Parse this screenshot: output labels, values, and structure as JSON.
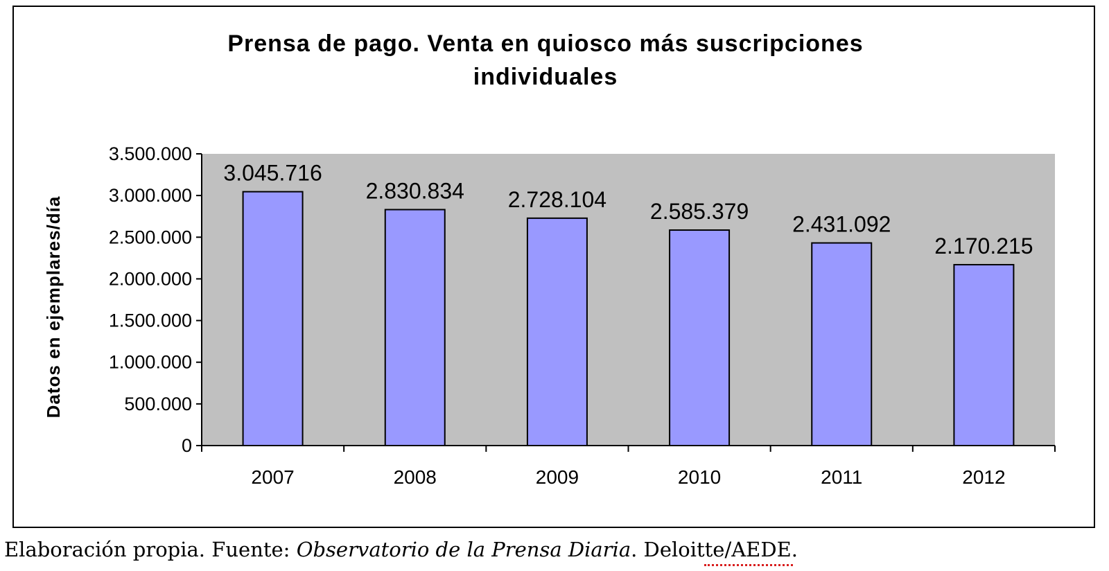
{
  "chart_data": {
    "type": "bar",
    "title_line1": "Prensa de pago. Venta en quiosco más suscripciones",
    "title_line2": "individuales",
    "xlabel": "",
    "ylabel": "Datos en ejemplares/día",
    "categories": [
      "2007",
      "2008",
      "2009",
      "2010",
      "2011",
      "2012"
    ],
    "series": [
      {
        "values": [
          3045716,
          2830834,
          2728104,
          2585379,
          2431092,
          2170215
        ],
        "data_labels": [
          "3.045.716",
          "2.830.834",
          "2.728.104",
          "2.585.379",
          "2.431.092",
          "2.170.215"
        ]
      }
    ],
    "ylim": [
      0,
      3500000
    ],
    "yticks": [
      0,
      500000,
      1000000,
      1500000,
      2000000,
      2500000,
      3000000,
      3500000
    ],
    "ytick_labels": [
      "0",
      "500.000",
      "1.000.000",
      "1.500.000",
      "2.000.000",
      "2.500.000",
      "3.000.000",
      "3.500.000"
    ],
    "grid": false,
    "legend": "none",
    "colors": {
      "bar_fill": "#9999ff",
      "plot_background": "#c0c0c0",
      "bar_outline": "#000000"
    }
  },
  "footer": {
    "source_prefix": "Elaboración propia. Fuente: ",
    "source_title": "Observatorio de la Prensa Diaria",
    "source_suffix": ". Deloitte/AEDE."
  }
}
